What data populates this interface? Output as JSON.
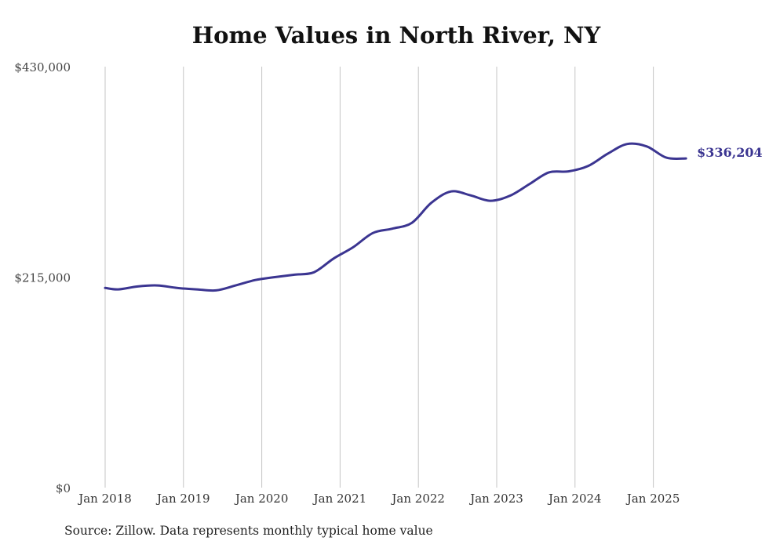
{
  "chart_data": {
    "type": "line",
    "title": "Home Values in North River, NY",
    "source": "Source: Zillow. Data represents monthly typical home value",
    "ylim": [
      0,
      430000
    ],
    "y_ticks": [
      "$0",
      "$215,000",
      "$430,000"
    ],
    "y_tick_values": [
      0,
      215000,
      430000
    ],
    "x_tick_labels": [
      "Jan 2018",
      "Jan 2019",
      "Jan 2020",
      "Jan 2021",
      "Jan 2022",
      "Jan 2023",
      "Jan 2024",
      "Jan 2025"
    ],
    "x_tick_values": [
      "2018-01",
      "2019-01",
      "2020-01",
      "2021-01",
      "2022-01",
      "2023-01",
      "2024-01",
      "2025-01"
    ],
    "grid": "vertical",
    "line_color": "#3b3591",
    "end_label": "$336,204",
    "x": [
      "2018-01",
      "2018-03",
      "2018-06",
      "2018-09",
      "2018-12",
      "2019-03",
      "2019-06",
      "2019-09",
      "2019-12",
      "2020-03",
      "2020-06",
      "2020-09",
      "2020-12",
      "2021-03",
      "2021-06",
      "2021-09",
      "2021-12",
      "2022-03",
      "2022-06",
      "2022-09",
      "2022-12",
      "2023-03",
      "2023-06",
      "2023-09",
      "2023-12",
      "2024-03",
      "2024-06",
      "2024-09",
      "2024-12",
      "2025-03",
      "2025-06"
    ],
    "values": [
      204000,
      202500,
      205500,
      206500,
      204000,
      202500,
      201500,
      206500,
      212000,
      215000,
      217500,
      220000,
      234000,
      245500,
      260000,
      264500,
      270500,
      291000,
      302500,
      298500,
      293000,
      298000,
      310000,
      322000,
      323000,
      328500,
      341000,
      351000,
      348500,
      337000,
      336204
    ]
  }
}
